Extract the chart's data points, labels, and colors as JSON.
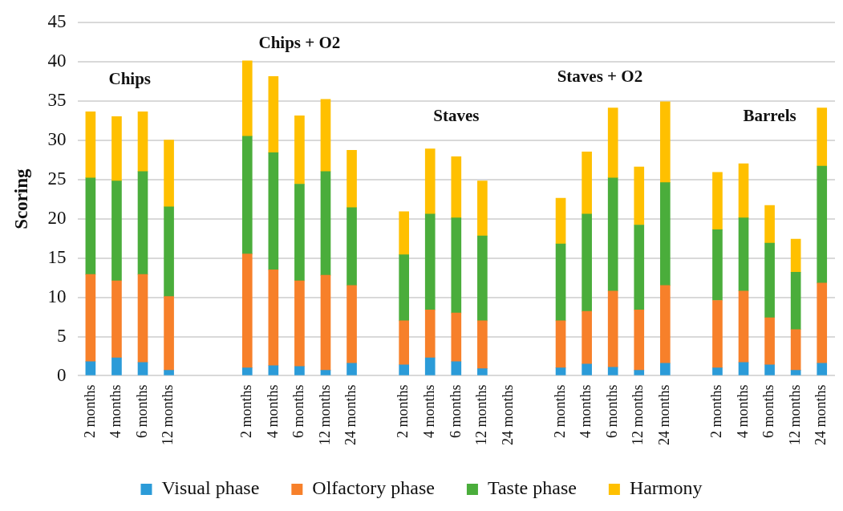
{
  "chart_data": {
    "type": "bar",
    "stacked": true,
    "ylabel": "Scoring",
    "categories": [
      "2 months",
      "4 months",
      "6 months",
      "12 months",
      null,
      null,
      "2 months",
      "4 months",
      "6 months",
      "12 months",
      "24 months",
      null,
      "2 months",
      "4 months",
      "6 months",
      "12 months",
      "24 months",
      null,
      "2 months",
      "4 months",
      "6 months",
      "12 months",
      "24 months",
      null,
      "2 months",
      "4 months",
      "6 months",
      "12 months",
      "24 months"
    ],
    "series": [
      {
        "name": "Visual phase",
        "color": "#2b9bd8",
        "values": [
          1.8,
          2.3,
          1.7,
          0.7,
          null,
          null,
          1.0,
          1.3,
          1.2,
          0.7,
          1.6,
          null,
          1.4,
          2.3,
          1.8,
          0.9,
          null,
          null,
          1.0,
          1.5,
          1.1,
          0.7,
          1.6,
          null,
          1.0,
          1.7,
          1.4,
          0.7,
          1.6
        ]
      },
      {
        "name": "Olfactory phase",
        "color": "#f7802a",
        "values": [
          11.1,
          9.8,
          11.2,
          9.4,
          null,
          null,
          14.5,
          12.2,
          10.9,
          12.1,
          9.9,
          null,
          5.6,
          6.1,
          6.2,
          6.1,
          null,
          null,
          6.0,
          6.7,
          9.7,
          7.7,
          9.9,
          null,
          8.6,
          9.1,
          6.0,
          5.2,
          10.2
        ]
      },
      {
        "name": "Taste phase",
        "color": "#4aad3b",
        "values": [
          12.3,
          12.7,
          13.1,
          11.4,
          null,
          null,
          15.0,
          14.9,
          12.3,
          13.2,
          9.9,
          null,
          8.4,
          12.2,
          12.1,
          10.8,
          null,
          null,
          9.8,
          12.4,
          14.4,
          10.8,
          13.1,
          null,
          9.0,
          9.3,
          9.5,
          7.3,
          14.9
        ]
      },
      {
        "name": "Harmony",
        "color": "#ffc000",
        "values": [
          8.4,
          8.2,
          7.6,
          8.5,
          null,
          null,
          9.6,
          9.7,
          8.7,
          9.2,
          7.3,
          null,
          5.5,
          8.3,
          7.8,
          7.0,
          null,
          null,
          5.8,
          7.9,
          8.9,
          7.4,
          10.3,
          null,
          7.3,
          6.9,
          4.8,
          4.2,
          7.4
        ]
      }
    ],
    "ylim": [
      0,
      45
    ],
    "yticks": [
      0,
      5,
      10,
      15,
      20,
      25,
      30,
      35,
      40,
      45
    ],
    "grid": "y",
    "legend": "bottom",
    "annotations": [
      "Chips",
      "Chips + O2",
      "Staves",
      "Staves + O2",
      "Barrels"
    ]
  }
}
